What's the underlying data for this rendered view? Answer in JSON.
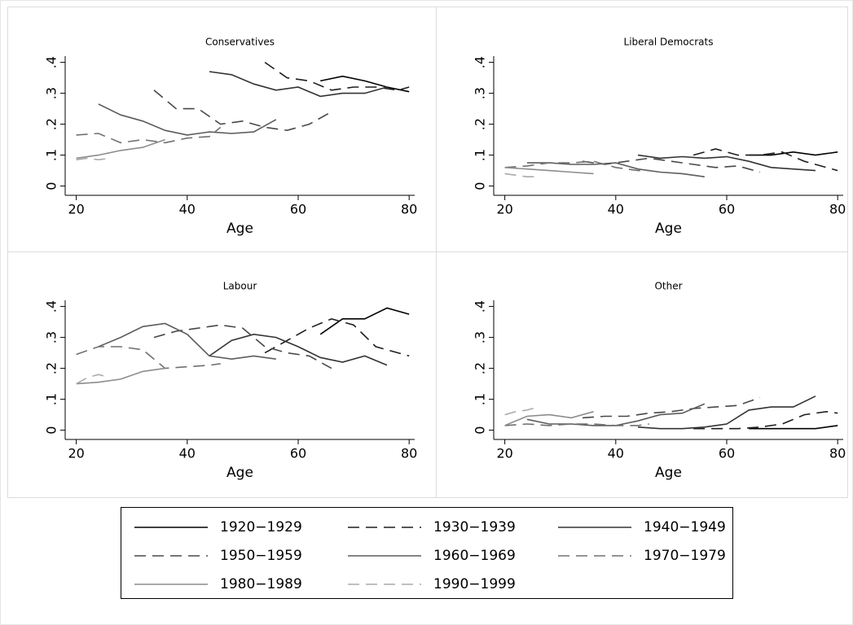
{
  "chart_data": [
    {
      "type": "line",
      "title": "Conservatives",
      "xlabel": "Age",
      "xlim": [
        18,
        81
      ],
      "xticks": [
        20,
        40,
        60,
        80
      ],
      "ylim": [
        -0.03,
        0.42
      ],
      "yticks": [
        0,
        {
          "value": 0.1,
          "label": ".1"
        },
        {
          "value": 0.2,
          "label": ".2"
        },
        {
          "value": 0.3,
          "label": ".3"
        },
        {
          "value": 0.4,
          "label": ".4"
        }
      ],
      "series": [
        {
          "name": "1920−1929",
          "color": "#000000",
          "dash": "solid",
          "x": [
            64,
            68,
            72,
            76,
            80
          ],
          "values": [
            0.34,
            0.355,
            0.34,
            0.32,
            0.305
          ]
        },
        {
          "name": "1930−1939",
          "color": "#1e1e1e",
          "dash": "dashed",
          "x": [
            54,
            58,
            62,
            66,
            70,
            74,
            78,
            80
          ],
          "values": [
            0.4,
            0.35,
            0.34,
            0.31,
            0.32,
            0.32,
            0.31,
            0.32
          ]
        },
        {
          "name": "1940−1949",
          "color": "#333333",
          "dash": "solid",
          "x": [
            44,
            48,
            52,
            56,
            60,
            64,
            68,
            72,
            76
          ],
          "values": [
            0.37,
            0.36,
            0.33,
            0.31,
            0.32,
            0.29,
            0.3,
            0.3,
            0.32
          ]
        },
        {
          "name": "1950−1959",
          "color": "#484848",
          "dash": "dashed",
          "x": [
            34,
            38,
            42,
            46,
            50,
            54,
            58,
            62,
            66
          ],
          "values": [
            0.31,
            0.25,
            0.25,
            0.2,
            0.21,
            0.19,
            0.18,
            0.2,
            0.24
          ]
        },
        {
          "name": "1960−1969",
          "color": "#5c5c5c",
          "dash": "solid",
          "x": [
            24,
            28,
            32,
            36,
            40,
            44,
            48,
            52,
            56
          ],
          "values": [
            0.265,
            0.23,
            0.21,
            0.18,
            0.165,
            0.175,
            0.17,
            0.175,
            0.215
          ]
        },
        {
          "name": "1970−1979",
          "color": "#707070",
          "dash": "dashed",
          "x": [
            20,
            24,
            28,
            32,
            36,
            40,
            44,
            46
          ],
          "values": [
            0.165,
            0.17,
            0.14,
            0.15,
            0.14,
            0.155,
            0.16,
            0.19
          ]
        },
        {
          "name": "1980−1989",
          "color": "#8c8c8c",
          "dash": "solid",
          "x": [
            20,
            24,
            28,
            32,
            36
          ],
          "values": [
            0.09,
            0.1,
            0.115,
            0.125,
            0.15
          ]
        },
        {
          "name": "1990−1999",
          "color": "#aaaaaa",
          "dash": "dashed",
          "x": [
            20,
            22,
            24,
            26
          ],
          "values": [
            0.085,
            0.09,
            0.085,
            0.09
          ]
        }
      ]
    },
    {
      "type": "line",
      "title": "Liberal Democrats",
      "xlabel": "Age",
      "xlim": [
        18,
        81
      ],
      "xticks": [
        20,
        40,
        60,
        80
      ],
      "ylim": [
        -0.03,
        0.42
      ],
      "yticks": [
        0,
        {
          "value": 0.1,
          "label": ".1"
        },
        {
          "value": 0.2,
          "label": ".2"
        },
        {
          "value": 0.3,
          "label": ".3"
        },
        {
          "value": 0.4,
          "label": ".4"
        }
      ],
      "series": [
        {
          "name": "1920−1929",
          "color": "#000000",
          "dash": "solid",
          "x": [
            64,
            68,
            72,
            76,
            80
          ],
          "values": [
            0.1,
            0.1,
            0.11,
            0.1,
            0.11
          ]
        },
        {
          "name": "1930−1939",
          "color": "#1e1e1e",
          "dash": "dashed",
          "x": [
            54,
            58,
            62,
            66,
            70,
            74,
            78,
            80
          ],
          "values": [
            0.1,
            0.12,
            0.1,
            0.1,
            0.11,
            0.08,
            0.06,
            0.05
          ]
        },
        {
          "name": "1940−1949",
          "color": "#333333",
          "dash": "solid",
          "x": [
            44,
            48,
            52,
            56,
            60,
            64,
            68,
            72,
            76
          ],
          "values": [
            0.1,
            0.09,
            0.095,
            0.09,
            0.095,
            0.08,
            0.06,
            0.055,
            0.05
          ]
        },
        {
          "name": "1950−1959",
          "color": "#484848",
          "dash": "dashed",
          "x": [
            34,
            38,
            42,
            46,
            50,
            54,
            58,
            62,
            66
          ],
          "values": [
            0.08,
            0.07,
            0.08,
            0.09,
            0.08,
            0.07,
            0.06,
            0.065,
            0.045
          ]
        },
        {
          "name": "1960−1969",
          "color": "#5c5c5c",
          "dash": "solid",
          "x": [
            24,
            28,
            32,
            36,
            40,
            44,
            48,
            52,
            56
          ],
          "values": [
            0.075,
            0.075,
            0.07,
            0.07,
            0.075,
            0.055,
            0.045,
            0.04,
            0.03
          ]
        },
        {
          "name": "1970−1979",
          "color": "#707070",
          "dash": "dashed",
          "x": [
            20,
            24,
            28,
            32,
            36,
            40,
            44,
            46
          ],
          "values": [
            0.06,
            0.065,
            0.075,
            0.075,
            0.08,
            0.06,
            0.05,
            0.05
          ]
        },
        {
          "name": "1980−1989",
          "color": "#8c8c8c",
          "dash": "solid",
          "x": [
            20,
            24,
            28,
            32,
            36
          ],
          "values": [
            0.06,
            0.055,
            0.05,
            0.045,
            0.04
          ]
        },
        {
          "name": "1990−1999",
          "color": "#aaaaaa",
          "dash": "dashed",
          "x": [
            20,
            22,
            24,
            26
          ],
          "values": [
            0.04,
            0.035,
            0.03,
            0.03
          ]
        }
      ]
    },
    {
      "type": "line",
      "title": "Labour",
      "xlabel": "Age",
      "xlim": [
        18,
        81
      ],
      "xticks": [
        20,
        40,
        60,
        80
      ],
      "ylim": [
        -0.03,
        0.42
      ],
      "yticks": [
        0,
        {
          "value": 0.1,
          "label": ".1"
        },
        {
          "value": 0.2,
          "label": ".2"
        },
        {
          "value": 0.3,
          "label": ".3"
        },
        {
          "value": 0.4,
          "label": ".4"
        }
      ],
      "series": [
        {
          "name": "1920−1929",
          "color": "#000000",
          "dash": "solid",
          "x": [
            64,
            68,
            72,
            76,
            80
          ],
          "values": [
            0.31,
            0.36,
            0.36,
            0.395,
            0.375
          ]
        },
        {
          "name": "1930−1939",
          "color": "#1e1e1e",
          "dash": "dashed",
          "x": [
            54,
            58,
            62,
            66,
            70,
            74,
            78,
            80
          ],
          "values": [
            0.25,
            0.29,
            0.33,
            0.36,
            0.34,
            0.27,
            0.25,
            0.24
          ]
        },
        {
          "name": "1940−1949",
          "color": "#333333",
          "dash": "solid",
          "x": [
            44,
            48,
            52,
            56,
            60,
            64,
            68,
            72,
            76
          ],
          "values": [
            0.24,
            0.29,
            0.31,
            0.3,
            0.27,
            0.235,
            0.22,
            0.24,
            0.21
          ]
        },
        {
          "name": "1950−1959",
          "color": "#484848",
          "dash": "dashed",
          "x": [
            34,
            38,
            42,
            46,
            50,
            54,
            58,
            62,
            66
          ],
          "values": [
            0.3,
            0.32,
            0.33,
            0.34,
            0.33,
            0.27,
            0.25,
            0.24,
            0.2
          ]
        },
        {
          "name": "1960−1969",
          "color": "#5c5c5c",
          "dash": "solid",
          "x": [
            24,
            28,
            32,
            36,
            40,
            44,
            48,
            52,
            56
          ],
          "values": [
            0.27,
            0.3,
            0.335,
            0.345,
            0.31,
            0.24,
            0.23,
            0.24,
            0.23
          ]
        },
        {
          "name": "1970−1979",
          "color": "#707070",
          "dash": "dashed",
          "x": [
            20,
            24,
            28,
            32,
            36,
            40,
            44,
            46
          ],
          "values": [
            0.245,
            0.27,
            0.27,
            0.26,
            0.2,
            0.205,
            0.21,
            0.215
          ]
        },
        {
          "name": "1980−1989",
          "color": "#8c8c8c",
          "dash": "solid",
          "x": [
            20,
            24,
            28,
            32,
            36
          ],
          "values": [
            0.15,
            0.155,
            0.165,
            0.19,
            0.2
          ]
        },
        {
          "name": "1990−1999",
          "color": "#aaaaaa",
          "dash": "dashed",
          "x": [
            20,
            22,
            24,
            26
          ],
          "values": [
            0.15,
            0.17,
            0.18,
            0.17
          ]
        }
      ]
    },
    {
      "type": "line",
      "title": "Other",
      "xlabel": "Age",
      "xlim": [
        18,
        81
      ],
      "xticks": [
        20,
        40,
        60,
        80
      ],
      "ylim": [
        -0.03,
        0.42
      ],
      "yticks": [
        0,
        {
          "value": 0.1,
          "label": ".1"
        },
        {
          "value": 0.2,
          "label": ".2"
        },
        {
          "value": 0.3,
          "label": ".3"
        },
        {
          "value": 0.4,
          "label": ".4"
        }
      ],
      "series": [
        {
          "name": "1920−1929",
          "color": "#000000",
          "dash": "solid",
          "x": [
            64,
            68,
            72,
            76,
            80
          ],
          "values": [
            0.005,
            0.005,
            0.005,
            0.005,
            0.015
          ]
        },
        {
          "name": "1930−1939",
          "color": "#1e1e1e",
          "dash": "dashed",
          "x": [
            54,
            58,
            62,
            66,
            70,
            74,
            78,
            80
          ],
          "values": [
            0.005,
            0.005,
            0.005,
            0.01,
            0.02,
            0.05,
            0.06,
            0.055
          ]
        },
        {
          "name": "1940−1949",
          "color": "#333333",
          "dash": "solid",
          "x": [
            44,
            48,
            52,
            56,
            60,
            64,
            68,
            72,
            76
          ],
          "values": [
            0.01,
            0.005,
            0.005,
            0.01,
            0.02,
            0.065,
            0.075,
            0.075,
            0.11
          ]
        },
        {
          "name": "1950−1959",
          "color": "#484848",
          "dash": "dashed",
          "x": [
            34,
            38,
            42,
            46,
            50,
            54,
            58,
            62,
            66
          ],
          "values": [
            0.04,
            0.045,
            0.045,
            0.055,
            0.06,
            0.07,
            0.075,
            0.08,
            0.105
          ]
        },
        {
          "name": "1960−1969",
          "color": "#5c5c5c",
          "dash": "solid",
          "x": [
            24,
            28,
            32,
            36,
            40,
            44,
            48,
            52,
            56
          ],
          "values": [
            0.035,
            0.02,
            0.02,
            0.015,
            0.015,
            0.03,
            0.05,
            0.055,
            0.085
          ]
        },
        {
          "name": "1970−1979",
          "color": "#707070",
          "dash": "dashed",
          "x": [
            20,
            24,
            28,
            32,
            36,
            40,
            44,
            46
          ],
          "values": [
            0.015,
            0.02,
            0.015,
            0.02,
            0.02,
            0.015,
            0.015,
            0.02
          ]
        },
        {
          "name": "1980−1989",
          "color": "#8c8c8c",
          "dash": "solid",
          "x": [
            20,
            24,
            28,
            32,
            36
          ],
          "values": [
            0.015,
            0.045,
            0.05,
            0.04,
            0.06
          ]
        },
        {
          "name": "1990−1999",
          "color": "#aaaaaa",
          "dash": "dashed",
          "x": [
            20,
            22,
            24,
            26
          ],
          "values": [
            0.05,
            0.06,
            0.065,
            0.075
          ]
        }
      ]
    }
  ]
}
